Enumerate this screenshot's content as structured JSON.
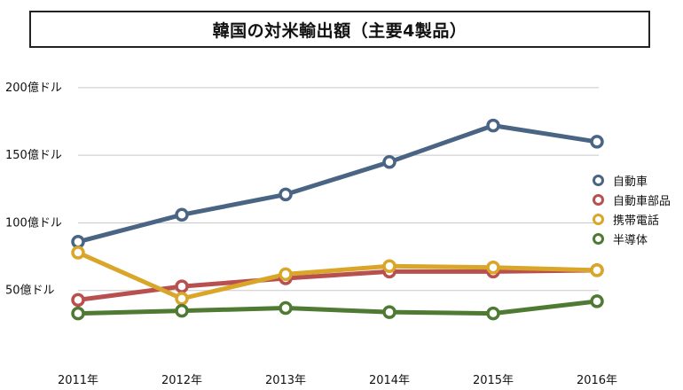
{
  "chart_data": {
    "type": "line",
    "title": "韓国の対米輸出額（主要4製品）",
    "categories": [
      "2011年",
      "2012年",
      "2013年",
      "2014年",
      "2015年",
      "2016年"
    ],
    "y_ticks": [
      {
        "value": 50,
        "label": "50億ドル"
      },
      {
        "value": 100,
        "label": "100億ドル"
      },
      {
        "value": 150,
        "label": "150億ドル"
      },
      {
        "value": 200,
        "label": "200億ドル"
      }
    ],
    "ylim": [
      0,
      200
    ],
    "grid": true,
    "legend_position": "right",
    "series": [
      {
        "name": "自動車",
        "color": "#4a6484",
        "values": [
          86,
          106,
          121,
          145,
          172,
          160
        ]
      },
      {
        "name": "自動車部品",
        "color": "#b85050",
        "values": [
          43,
          53,
          59,
          64,
          64,
          65
        ]
      },
      {
        "name": "携帯電話",
        "color": "#d9a62a",
        "values": [
          78,
          44,
          62,
          68,
          67,
          65
        ]
      },
      {
        "name": "半導体",
        "color": "#4f7a33",
        "values": [
          33,
          35,
          37,
          34,
          33,
          42
        ]
      }
    ]
  }
}
